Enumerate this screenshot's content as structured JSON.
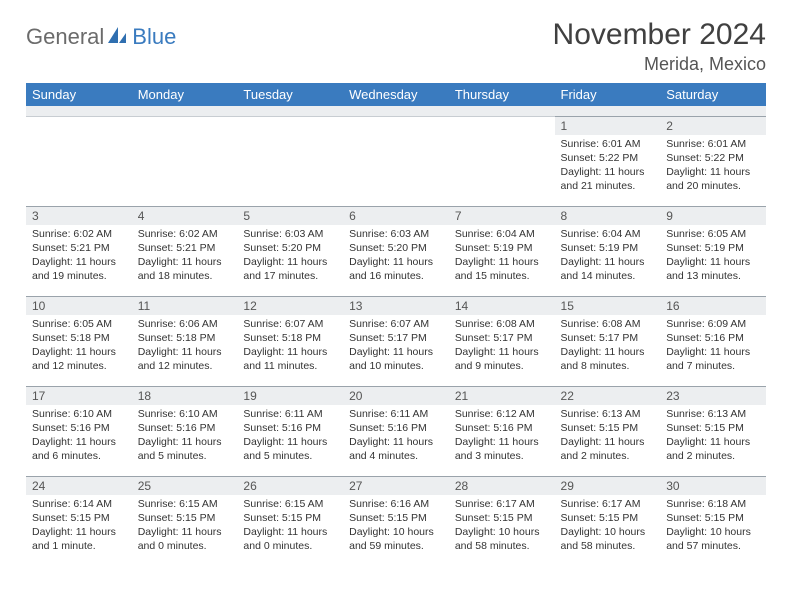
{
  "logo": {
    "text1": "General",
    "text2": "Blue"
  },
  "title": "November 2024",
  "location": "Merida, Mexico",
  "colors": {
    "header_bg": "#3a7bbf",
    "header_text": "#ffffff",
    "daynum_bg": "#eceef0",
    "border": "#9aa3ab",
    "page_bg": "#ffffff",
    "title_color": "#404040",
    "location_color": "#555555",
    "logo_general": "#6b6b6b",
    "logo_blue": "#3a7bbf"
  },
  "weekdays": [
    "Sunday",
    "Monday",
    "Tuesday",
    "Wednesday",
    "Thursday",
    "Friday",
    "Saturday"
  ],
  "weeks": [
    [
      null,
      null,
      null,
      null,
      null,
      {
        "day": "1",
        "sunrise": "Sunrise: 6:01 AM",
        "sunset": "Sunset: 5:22 PM",
        "daylight": "Daylight: 11 hours and 21 minutes."
      },
      {
        "day": "2",
        "sunrise": "Sunrise: 6:01 AM",
        "sunset": "Sunset: 5:22 PM",
        "daylight": "Daylight: 11 hours and 20 minutes."
      }
    ],
    [
      {
        "day": "3",
        "sunrise": "Sunrise: 6:02 AM",
        "sunset": "Sunset: 5:21 PM",
        "daylight": "Daylight: 11 hours and 19 minutes."
      },
      {
        "day": "4",
        "sunrise": "Sunrise: 6:02 AM",
        "sunset": "Sunset: 5:21 PM",
        "daylight": "Daylight: 11 hours and 18 minutes."
      },
      {
        "day": "5",
        "sunrise": "Sunrise: 6:03 AM",
        "sunset": "Sunset: 5:20 PM",
        "daylight": "Daylight: 11 hours and 17 minutes."
      },
      {
        "day": "6",
        "sunrise": "Sunrise: 6:03 AM",
        "sunset": "Sunset: 5:20 PM",
        "daylight": "Daylight: 11 hours and 16 minutes."
      },
      {
        "day": "7",
        "sunrise": "Sunrise: 6:04 AM",
        "sunset": "Sunset: 5:19 PM",
        "daylight": "Daylight: 11 hours and 15 minutes."
      },
      {
        "day": "8",
        "sunrise": "Sunrise: 6:04 AM",
        "sunset": "Sunset: 5:19 PM",
        "daylight": "Daylight: 11 hours and 14 minutes."
      },
      {
        "day": "9",
        "sunrise": "Sunrise: 6:05 AM",
        "sunset": "Sunset: 5:19 PM",
        "daylight": "Daylight: 11 hours and 13 minutes."
      }
    ],
    [
      {
        "day": "10",
        "sunrise": "Sunrise: 6:05 AM",
        "sunset": "Sunset: 5:18 PM",
        "daylight": "Daylight: 11 hours and 12 minutes."
      },
      {
        "day": "11",
        "sunrise": "Sunrise: 6:06 AM",
        "sunset": "Sunset: 5:18 PM",
        "daylight": "Daylight: 11 hours and 12 minutes."
      },
      {
        "day": "12",
        "sunrise": "Sunrise: 6:07 AM",
        "sunset": "Sunset: 5:18 PM",
        "daylight": "Daylight: 11 hours and 11 minutes."
      },
      {
        "day": "13",
        "sunrise": "Sunrise: 6:07 AM",
        "sunset": "Sunset: 5:17 PM",
        "daylight": "Daylight: 11 hours and 10 minutes."
      },
      {
        "day": "14",
        "sunrise": "Sunrise: 6:08 AM",
        "sunset": "Sunset: 5:17 PM",
        "daylight": "Daylight: 11 hours and 9 minutes."
      },
      {
        "day": "15",
        "sunrise": "Sunrise: 6:08 AM",
        "sunset": "Sunset: 5:17 PM",
        "daylight": "Daylight: 11 hours and 8 minutes."
      },
      {
        "day": "16",
        "sunrise": "Sunrise: 6:09 AM",
        "sunset": "Sunset: 5:16 PM",
        "daylight": "Daylight: 11 hours and 7 minutes."
      }
    ],
    [
      {
        "day": "17",
        "sunrise": "Sunrise: 6:10 AM",
        "sunset": "Sunset: 5:16 PM",
        "daylight": "Daylight: 11 hours and 6 minutes."
      },
      {
        "day": "18",
        "sunrise": "Sunrise: 6:10 AM",
        "sunset": "Sunset: 5:16 PM",
        "daylight": "Daylight: 11 hours and 5 minutes."
      },
      {
        "day": "19",
        "sunrise": "Sunrise: 6:11 AM",
        "sunset": "Sunset: 5:16 PM",
        "daylight": "Daylight: 11 hours and 5 minutes."
      },
      {
        "day": "20",
        "sunrise": "Sunrise: 6:11 AM",
        "sunset": "Sunset: 5:16 PM",
        "daylight": "Daylight: 11 hours and 4 minutes."
      },
      {
        "day": "21",
        "sunrise": "Sunrise: 6:12 AM",
        "sunset": "Sunset: 5:16 PM",
        "daylight": "Daylight: 11 hours and 3 minutes."
      },
      {
        "day": "22",
        "sunrise": "Sunrise: 6:13 AM",
        "sunset": "Sunset: 5:15 PM",
        "daylight": "Daylight: 11 hours and 2 minutes."
      },
      {
        "day": "23",
        "sunrise": "Sunrise: 6:13 AM",
        "sunset": "Sunset: 5:15 PM",
        "daylight": "Daylight: 11 hours and 2 minutes."
      }
    ],
    [
      {
        "day": "24",
        "sunrise": "Sunrise: 6:14 AM",
        "sunset": "Sunset: 5:15 PM",
        "daylight": "Daylight: 11 hours and 1 minute."
      },
      {
        "day": "25",
        "sunrise": "Sunrise: 6:15 AM",
        "sunset": "Sunset: 5:15 PM",
        "daylight": "Daylight: 11 hours and 0 minutes."
      },
      {
        "day": "26",
        "sunrise": "Sunrise: 6:15 AM",
        "sunset": "Sunset: 5:15 PM",
        "daylight": "Daylight: 11 hours and 0 minutes."
      },
      {
        "day": "27",
        "sunrise": "Sunrise: 6:16 AM",
        "sunset": "Sunset: 5:15 PM",
        "daylight": "Daylight: 10 hours and 59 minutes."
      },
      {
        "day": "28",
        "sunrise": "Sunrise: 6:17 AM",
        "sunset": "Sunset: 5:15 PM",
        "daylight": "Daylight: 10 hours and 58 minutes."
      },
      {
        "day": "29",
        "sunrise": "Sunrise: 6:17 AM",
        "sunset": "Sunset: 5:15 PM",
        "daylight": "Daylight: 10 hours and 58 minutes."
      },
      {
        "day": "30",
        "sunrise": "Sunrise: 6:18 AM",
        "sunset": "Sunset: 5:15 PM",
        "daylight": "Daylight: 10 hours and 57 minutes."
      }
    ]
  ]
}
